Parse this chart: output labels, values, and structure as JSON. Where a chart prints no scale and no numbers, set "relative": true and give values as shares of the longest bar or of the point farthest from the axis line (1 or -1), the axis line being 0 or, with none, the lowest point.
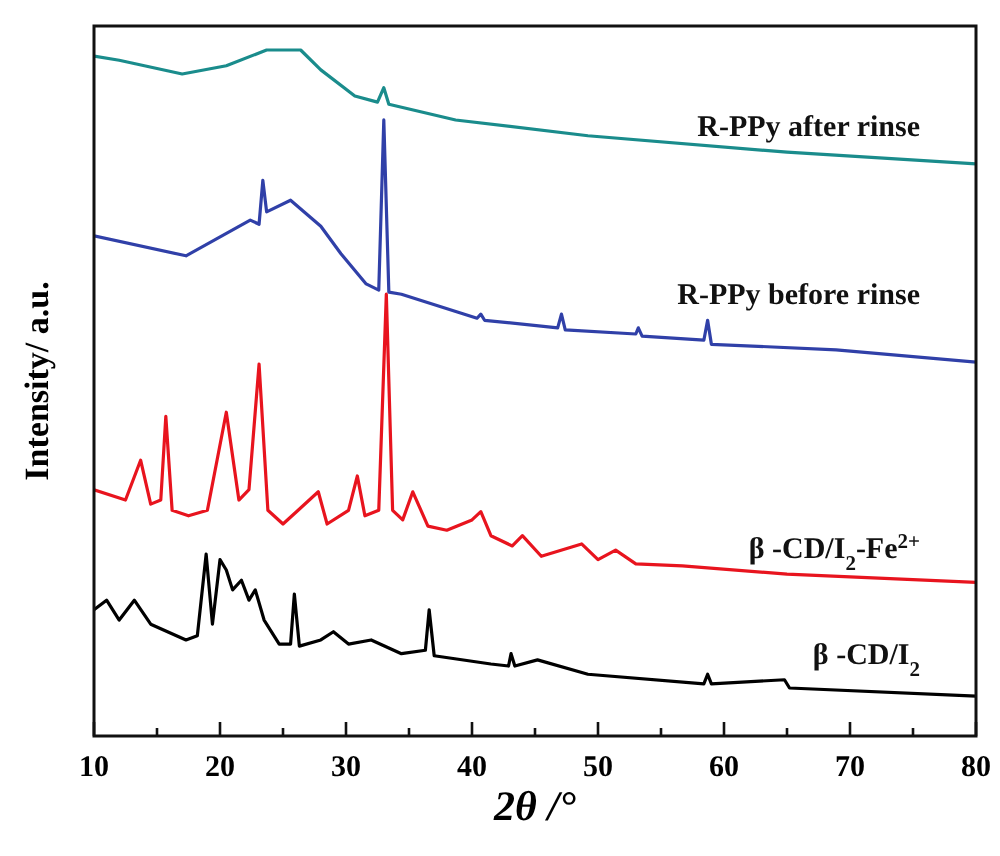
{
  "chart_data": {
    "type": "line",
    "relative": true,
    "xlabel": "2θ /°",
    "ylabel": "Intensity/ a.u.",
    "xlim": [
      10,
      80
    ],
    "xticks": [
      10,
      {
        "value": 15,
        "label": null
      },
      20,
      {
        "value": 25,
        "label": null
      },
      30,
      {
        "value": 35,
        "label": null
      },
      40,
      {
        "value": 45,
        "label": null
      },
      50,
      {
        "value": 55,
        "label": null
      },
      60,
      {
        "value": 65,
        "label": null
      },
      70,
      {
        "value": 75,
        "label": null
      },
      80
    ],
    "grid": false,
    "legend": false,
    "marker": "none",
    "line_style": "solid",
    "series": [
      {
        "name": "R-PPy after rinse",
        "color": "#1a8c8c",
        "x": [
          10,
          12,
          17,
          20.5,
          23.7,
          26.4,
          28,
          30.7,
          32.5,
          33,
          33.4,
          38.7,
          49.2,
          65,
          80
        ],
        "values": [
          0.991,
          0.985,
          0.965,
          0.977,
          1.0,
          1.0,
          0.971,
          0.933,
          0.924,
          0.945,
          0.921,
          0.898,
          0.875,
          0.851,
          0.834
        ]
      },
      {
        "name": "R-PPy before rinse",
        "color": "#3040a8",
        "x": [
          10,
          17.3,
          22.4,
          23.1,
          23.4,
          23.7,
          25.6,
          28,
          29.6,
          31.6,
          32.6,
          33.0,
          33.4,
          34.4,
          40.4,
          40.7,
          41,
          46.8,
          47.1,
          47.4,
          53,
          53.2,
          53.5,
          58.4,
          58.7,
          59,
          68.9,
          80
        ],
        "values": [
          0.729,
          0.7,
          0.752,
          0.746,
          0.81,
          0.764,
          0.781,
          0.743,
          0.703,
          0.659,
          0.65,
          0.898,
          0.647,
          0.644,
          0.609,
          0.615,
          0.606,
          0.595,
          0.615,
          0.592,
          0.586,
          0.595,
          0.583,
          0.577,
          0.606,
          0.571,
          0.563,
          0.545
        ]
      },
      {
        "name": "β -CD/I$_{2}$-Fe$^{2+}$",
        "color": "#e8141e",
        "x": [
          10,
          12.5,
          13.7,
          14.5,
          15.3,
          15.7,
          16.2,
          17.5,
          19,
          20.5,
          21.5,
          22.3,
          23.1,
          23.8,
          25,
          26.2,
          27.8,
          28.5,
          30.2,
          30.9,
          31.5,
          32.6,
          33.2,
          33.7,
          34.5,
          35.3,
          36.5,
          38,
          40,
          40.7,
          41.5,
          43.2,
          44,
          45.5,
          48.7,
          50,
          51.4,
          53,
          56.7,
          65,
          80
        ],
        "values": [
          0.359,
          0.344,
          0.402,
          0.338,
          0.344,
          0.466,
          0.329,
          0.321,
          0.329,
          0.472,
          0.344,
          0.359,
          0.542,
          0.329,
          0.309,
          0.329,
          0.356,
          0.309,
          0.329,
          0.379,
          0.321,
          0.329,
          0.644,
          0.329,
          0.315,
          0.356,
          0.306,
          0.3,
          0.315,
          0.327,
          0.292,
          0.277,
          0.292,
          0.262,
          0.28,
          0.257,
          0.271,
          0.251,
          0.248,
          0.236,
          0.224
        ]
      },
      {
        "name": "β -CD/I$_{2}$",
        "color": "#000000",
        "x": [
          10,
          11,
          12,
          13.2,
          14.5,
          17.3,
          18.2,
          18.9,
          19.4,
          20,
          20.5,
          21,
          21.7,
          22.3,
          22.8,
          23.5,
          24.7,
          25.6,
          25.9,
          26.3,
          28,
          29,
          30.2,
          32,
          34.4,
          36.3,
          36.6,
          37,
          41.5,
          42.9,
          43.1,
          43.4,
          45.2,
          49.2,
          58.4,
          58.7,
          59,
          64.8,
          65.2,
          80
        ],
        "values": [
          0.184,
          0.198,
          0.169,
          0.198,
          0.163,
          0.14,
          0.146,
          0.265,
          0.163,
          0.257,
          0.242,
          0.213,
          0.227,
          0.198,
          0.213,
          0.169,
          0.134,
          0.134,
          0.207,
          0.131,
          0.14,
          0.152,
          0.134,
          0.14,
          0.12,
          0.125,
          0.184,
          0.117,
          0.105,
          0.102,
          0.12,
          0.102,
          0.111,
          0.09,
          0.076,
          0.09,
          0.076,
          0.082,
          0.07,
          0.058
        ]
      }
    ]
  }
}
